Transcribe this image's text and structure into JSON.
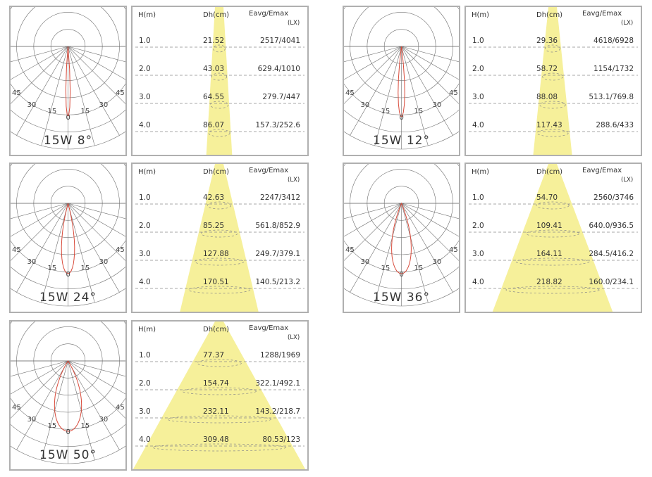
{
  "colors": {
    "curve": "#d84a3a",
    "cone": "#f6f09a",
    "grid": "#6f6f6f",
    "dash": "#8a8a8a",
    "border": "#b0b0b0"
  },
  "table_headers": {
    "height": "H(m)",
    "diameter": "Dh(cm)",
    "illuminance": "Eavg/Emax",
    "unit": "(LX)"
  },
  "polar_labels": {
    "zero": "0",
    "fifteen": "15",
    "thirty": "30",
    "forty_five": "45"
  },
  "charts": [
    {
      "caption": "15W 8°",
      "beam_angle_deg": 8,
      "rows": [
        {
          "h": "1.0",
          "dh": "21.52",
          "e": "2517/4041"
        },
        {
          "h": "2.0",
          "dh": "43.03",
          "e": "629.4/1010"
        },
        {
          "h": "3.0",
          "dh": "64.55",
          "e": "279.7/447"
        },
        {
          "h": "4.0",
          "dh": "86.07",
          "e": "157.3/252.6"
        }
      ]
    },
    {
      "caption": "15W 12°",
      "beam_angle_deg": 12,
      "rows": [
        {
          "h": "1.0",
          "dh": "29.36",
          "e": "4618/6928"
        },
        {
          "h": "2.0",
          "dh": "58.72",
          "e": "1154/1732"
        },
        {
          "h": "3.0",
          "dh": "88.08",
          "e": "513.1/769.8"
        },
        {
          "h": "4.0",
          "dh": "117.43",
          "e": "288.6/433"
        }
      ]
    },
    {
      "caption": "15W 24°",
      "beam_angle_deg": 24,
      "rows": [
        {
          "h": "1.0",
          "dh": "42.63",
          "e": "2247/3412"
        },
        {
          "h": "2.0",
          "dh": "85.25",
          "e": "561.8/852.9"
        },
        {
          "h": "3.0",
          "dh": "127.88",
          "e": "249.7/379.1"
        },
        {
          "h": "4.0",
          "dh": "170.51",
          "e": "140.5/213.2"
        }
      ]
    },
    {
      "caption": "15W 36°",
      "beam_angle_deg": 36,
      "rows": [
        {
          "h": "1.0",
          "dh": "54.70",
          "e": "2560/3746"
        },
        {
          "h": "2.0",
          "dh": "109.41",
          "e": "640.0/936.5"
        },
        {
          "h": "3.0",
          "dh": "164.11",
          "e": "284.5/416.2"
        },
        {
          "h": "4.0",
          "dh": "218.82",
          "e": "160.0/234.1"
        }
      ]
    },
    {
      "caption": "15W 50°",
      "beam_angle_deg": 50,
      "rows": [
        {
          "h": "1.0",
          "dh": "77.37",
          "e": "1288/1969"
        },
        {
          "h": "2.0",
          "dh": "154.74",
          "e": "322.1/492.1"
        },
        {
          "h": "3.0",
          "dh": "232.11",
          "e": "143.2/218.7"
        },
        {
          "h": "4.0",
          "dh": "309.48",
          "e": "80.53/123"
        }
      ]
    }
  ]
}
